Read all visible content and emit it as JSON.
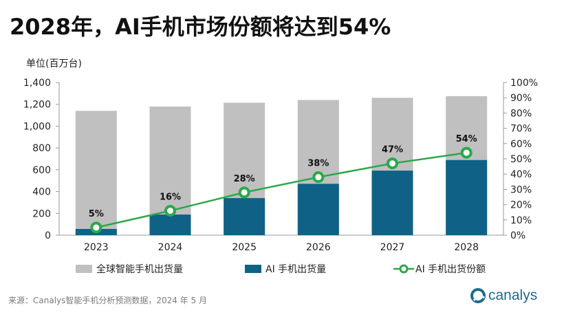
{
  "title": "2028年，AI手机市场份额将达到54%",
  "unit_label": "单位(百万台)",
  "source": "来源：Canalys智能手机分析预测数据，2024 年 5 月",
  "logo_text": "canalys",
  "colors": {
    "total": "#c0c0c0",
    "ai": "#0f6286",
    "share": "#2aa84a",
    "logo": "#1b6b8f"
  },
  "chart_data": {
    "type": "bar",
    "categories": [
      "2023",
      "2024",
      "2025",
      "2026",
      "2027",
      "2028"
    ],
    "series": [
      {
        "name": "全球智能手机出货量",
        "type": "bar",
        "axis": "left",
        "values": [
          1140,
          1180,
          1215,
          1240,
          1260,
          1275
        ]
      },
      {
        "name": "AI 手机出货量",
        "type": "bar",
        "axis": "left",
        "values": [
          57,
          189,
          340,
          471,
          592,
          689
        ]
      },
      {
        "name": "AI 手机出货份额",
        "type": "line",
        "axis": "right",
        "values": [
          5,
          16,
          28,
          38,
          47,
          54
        ],
        "labels": [
          "5%",
          "16%",
          "28%",
          "38%",
          "47%",
          "54%"
        ]
      }
    ],
    "y_left": {
      "min": 0,
      "max": 1400,
      "ticks": [
        "0",
        "200",
        "400",
        "600",
        "800",
        "1,000",
        "1,200",
        "1,400"
      ]
    },
    "y_right": {
      "min": 0,
      "max": 100,
      "ticks": [
        "0%",
        "10%",
        "20%",
        "30%",
        "40%",
        "50%",
        "60%",
        "70%",
        "80%",
        "90%",
        "100%"
      ]
    },
    "grid": false,
    "legend": "bottom"
  }
}
